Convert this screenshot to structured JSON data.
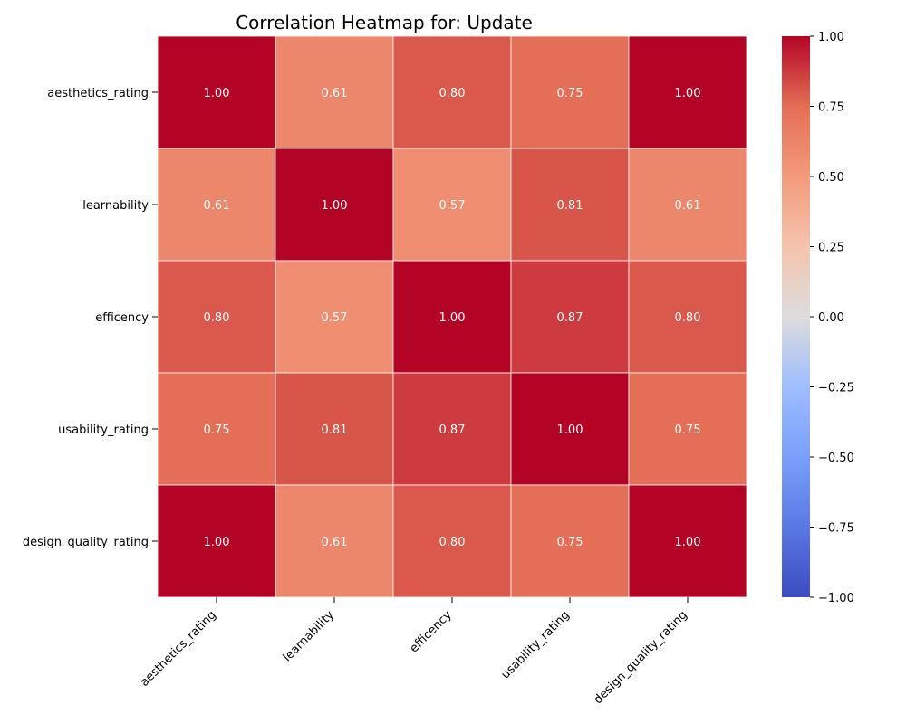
{
  "chart_data": {
    "type": "heatmap",
    "title": "Correlation Heatmap for: Update",
    "row_labels": [
      "aesthetics_rating",
      "learnability",
      "efficency",
      "usability_rating",
      "design_quality_rating"
    ],
    "col_labels": [
      "aesthetics_rating",
      "learnability",
      "efficency",
      "usability_rating",
      "design_quality_rating"
    ],
    "values": [
      [
        1.0,
        0.61,
        0.8,
        0.75,
        1.0
      ],
      [
        0.61,
        1.0,
        0.57,
        0.81,
        0.61
      ],
      [
        0.8,
        0.57,
        1.0,
        0.87,
        0.8
      ],
      [
        0.75,
        0.81,
        0.87,
        1.0,
        0.75
      ],
      [
        1.0,
        0.61,
        0.8,
        0.75,
        1.0
      ]
    ],
    "value_format": "0.00",
    "colormap": "coolwarm",
    "vmin": -1.0,
    "vmax": 1.0,
    "colorbar_ticks": [
      1.0,
      0.75,
      0.5,
      0.25,
      0.0,
      -0.25,
      -0.5,
      -0.75,
      -1.0
    ],
    "colorbar_tick_labels": [
      "1.00",
      "0.75",
      "0.50",
      "0.25",
      "0.00",
      "−0.25",
      "−0.50",
      "−0.75",
      "−1.00"
    ],
    "colors": {
      "low": "#3b4cc0",
      "mid": "#dddddd",
      "high": "#b40426",
      "cell_border": "#ffffff",
      "cell_text": "#ffffff"
    },
    "grid": false,
    "colorbar_placement": "right"
  }
}
